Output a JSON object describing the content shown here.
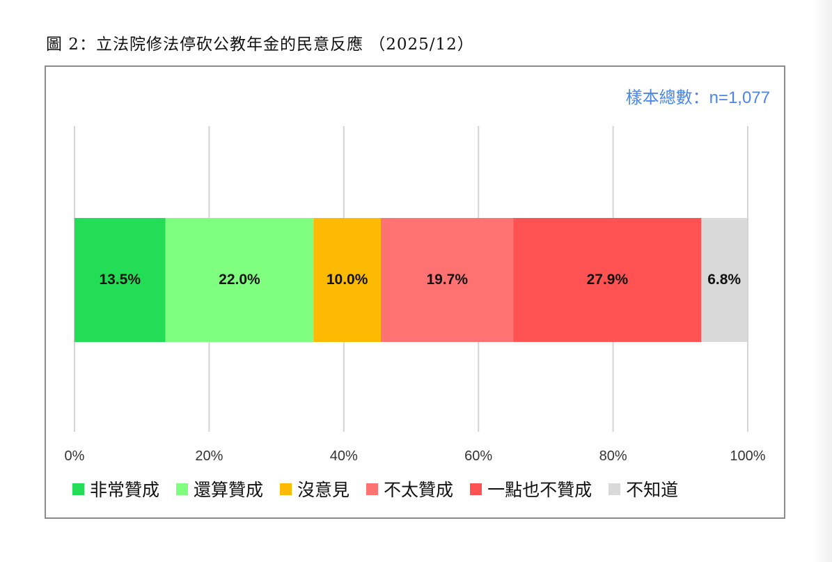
{
  "title": "圖 2：立法院修法停砍公教年金的民意反應 （2025/12）",
  "sample_note": "樣本總數：n=1,077",
  "chart_data": {
    "type": "bar",
    "orientation": "horizontal",
    "stacked": true,
    "title": "圖 2：立法院修法停砍公教年金的民意反應 （2025/12）",
    "xlabel": "",
    "ylabel": "",
    "xlim": [
      0,
      100
    ],
    "x_ticks": [
      "0%",
      "20%",
      "40%",
      "60%",
      "80%",
      "100%"
    ],
    "grid": true,
    "legend_position": "bottom",
    "series": [
      {
        "name": "非常贊成",
        "value": 13.5,
        "label": "13.5%",
        "color": "#22dd55"
      },
      {
        "name": "還算贊成",
        "value": 22.0,
        "label": "22.0%",
        "color": "#80fe80"
      },
      {
        "name": "沒意見",
        "value": 10.0,
        "label": "10.0%",
        "color": "#fcba03"
      },
      {
        "name": "不太贊成",
        "value": 19.7,
        "label": "19.7%",
        "color": "#ff7272"
      },
      {
        "name": "一點也不贊成",
        "value": 27.9,
        "label": "27.9%",
        "color": "#ff5252"
      },
      {
        "name": "不知道",
        "value": 6.8,
        "label": "6.8%",
        "color": "#d9d9d9"
      }
    ]
  }
}
